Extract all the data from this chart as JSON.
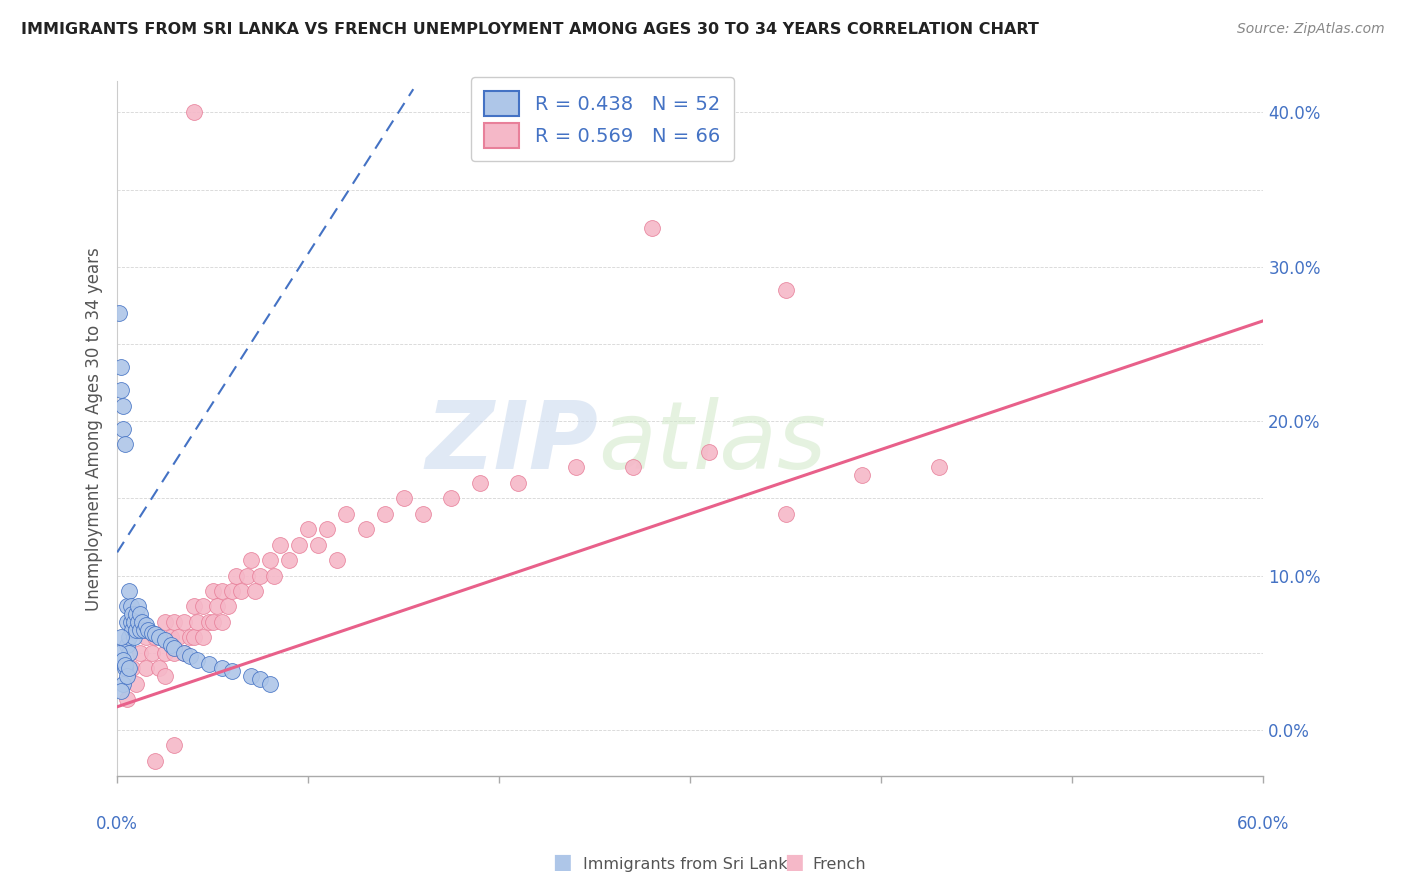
{
  "title": "IMMIGRANTS FROM SRI LANKA VS FRENCH UNEMPLOYMENT AMONG AGES 30 TO 34 YEARS CORRELATION CHART",
  "source": "Source: ZipAtlas.com",
  "ylabel": "Unemployment Among Ages 30 to 34 years",
  "legend_label1": "Immigrants from Sri Lanka",
  "legend_label2": "French",
  "R1": 0.438,
  "N1": 52,
  "R2": 0.569,
  "N2": 66,
  "color_blue_fill": "#aec6e8",
  "color_blue_edge": "#4472c4",
  "color_pink_fill": "#f5b8c8",
  "color_pink_edge": "#e8809a",
  "color_blue_text": "#4472c4",
  "xlim": [
    0.0,
    0.6
  ],
  "ylim": [
    -0.03,
    0.42
  ],
  "blue_line_x": [
    0.0,
    0.155
  ],
  "blue_line_y": [
    0.115,
    0.415
  ],
  "pink_line_x": [
    0.0,
    0.6
  ],
  "pink_line_y": [
    0.015,
    0.265
  ],
  "blue_x": [
    0.001,
    0.002,
    0.002,
    0.003,
    0.003,
    0.004,
    0.004,
    0.005,
    0.005,
    0.005,
    0.006,
    0.006,
    0.006,
    0.007,
    0.007,
    0.008,
    0.008,
    0.009,
    0.009,
    0.01,
    0.01,
    0.011,
    0.011,
    0.012,
    0.012,
    0.013,
    0.014,
    0.015,
    0.016,
    0.018,
    0.02,
    0.022,
    0.025,
    0.028,
    0.03,
    0.035,
    0.038,
    0.042,
    0.048,
    0.055,
    0.06,
    0.07,
    0.075,
    0.08,
    0.001,
    0.002,
    0.003,
    0.004,
    0.003,
    0.005,
    0.002,
    0.006
  ],
  "blue_y": [
    0.27,
    0.235,
    0.22,
    0.21,
    0.195,
    0.185,
    0.04,
    0.055,
    0.07,
    0.08,
    0.09,
    0.06,
    0.05,
    0.07,
    0.08,
    0.065,
    0.075,
    0.07,
    0.06,
    0.075,
    0.065,
    0.07,
    0.08,
    0.075,
    0.065,
    0.07,
    0.065,
    0.068,
    0.065,
    0.063,
    0.062,
    0.06,
    0.058,
    0.055,
    0.053,
    0.05,
    0.048,
    0.045,
    0.043,
    0.04,
    0.038,
    0.035,
    0.033,
    0.03,
    0.05,
    0.06,
    0.045,
    0.042,
    0.03,
    0.035,
    0.025,
    0.04
  ],
  "pink_x": [
    0.005,
    0.008,
    0.01,
    0.012,
    0.015,
    0.015,
    0.018,
    0.02,
    0.022,
    0.025,
    0.025,
    0.028,
    0.03,
    0.03,
    0.032,
    0.035,
    0.035,
    0.038,
    0.04,
    0.04,
    0.042,
    0.045,
    0.045,
    0.048,
    0.05,
    0.05,
    0.052,
    0.055,
    0.055,
    0.058,
    0.06,
    0.062,
    0.065,
    0.068,
    0.07,
    0.072,
    0.075,
    0.08,
    0.082,
    0.085,
    0.09,
    0.095,
    0.1,
    0.105,
    0.11,
    0.115,
    0.12,
    0.13,
    0.14,
    0.15,
    0.16,
    0.175,
    0.19,
    0.21,
    0.24,
    0.27,
    0.31,
    0.35,
    0.39,
    0.43,
    0.35,
    0.28,
    0.04,
    0.02,
    0.025,
    0.03
  ],
  "pink_y": [
    0.02,
    0.04,
    0.03,
    0.05,
    0.04,
    0.06,
    0.05,
    0.06,
    0.04,
    0.07,
    0.05,
    0.06,
    0.07,
    0.05,
    0.06,
    0.07,
    0.05,
    0.06,
    0.08,
    0.06,
    0.07,
    0.08,
    0.06,
    0.07,
    0.09,
    0.07,
    0.08,
    0.09,
    0.07,
    0.08,
    0.09,
    0.1,
    0.09,
    0.1,
    0.11,
    0.09,
    0.1,
    0.11,
    0.1,
    0.12,
    0.11,
    0.12,
    0.13,
    0.12,
    0.13,
    0.11,
    0.14,
    0.13,
    0.14,
    0.15,
    0.14,
    0.15,
    0.16,
    0.16,
    0.17,
    0.17,
    0.18,
    0.14,
    0.165,
    0.17,
    0.285,
    0.325,
    0.4,
    -0.02,
    0.035,
    -0.01
  ]
}
